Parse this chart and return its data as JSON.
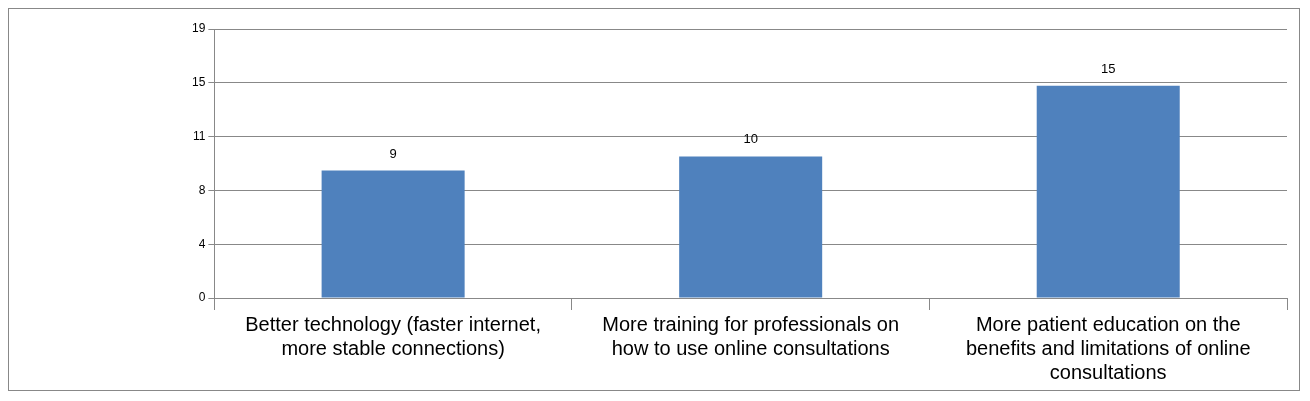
{
  "chart_data": {
    "type": "bar",
    "categories": [
      "Better technology (faster internet, more stable connections)",
      "More training for professionals on how to use online consultations",
      "More patient education on the benefits and limitations of online consultations"
    ],
    "values": [
      9,
      10,
      15
    ],
    "color": "#4f81bd",
    "data_labels": true,
    "grid": "y",
    "ylim": [
      0,
      19
    ],
    "yticks": [
      0,
      {
        "value": 3.8,
        "label": "4"
      },
      {
        "value": 7.6,
        "label": "8"
      },
      {
        "value": 11.4,
        "label": "11"
      },
      {
        "value": 15.2,
        "label": "15"
      },
      19
    ]
  }
}
